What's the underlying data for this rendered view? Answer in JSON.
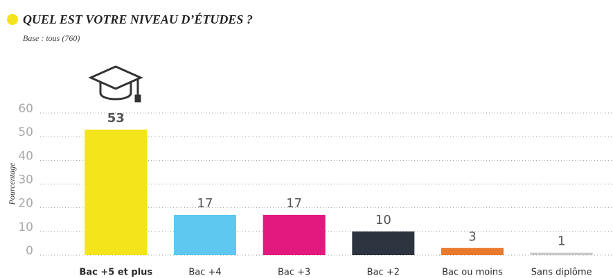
{
  "chart_data": {
    "type": "bar",
    "title": "QUEL EST VOTRE NIVEAU D’ÉTUDES ?",
    "subtitle": "Base : tous (760)",
    "y_label": "Pourcentage",
    "categories": [
      "Bac +5 et plus",
      "Bac +4",
      "Bac +3",
      "Bac +2",
      "Bac ou moins",
      "Sans diplôme"
    ],
    "values": [
      53,
      17,
      17,
      10,
      3,
      1
    ],
    "colors": [
      "#f3e41c",
      "#5ec8f0",
      "#e3187f",
      "#2c3440",
      "#e9792c",
      "#c9c9c9"
    ],
    "ylim": [
      0,
      60
    ],
    "yticks": [
      0,
      10,
      20,
      30,
      40,
      50,
      60
    ],
    "grid": true
  }
}
